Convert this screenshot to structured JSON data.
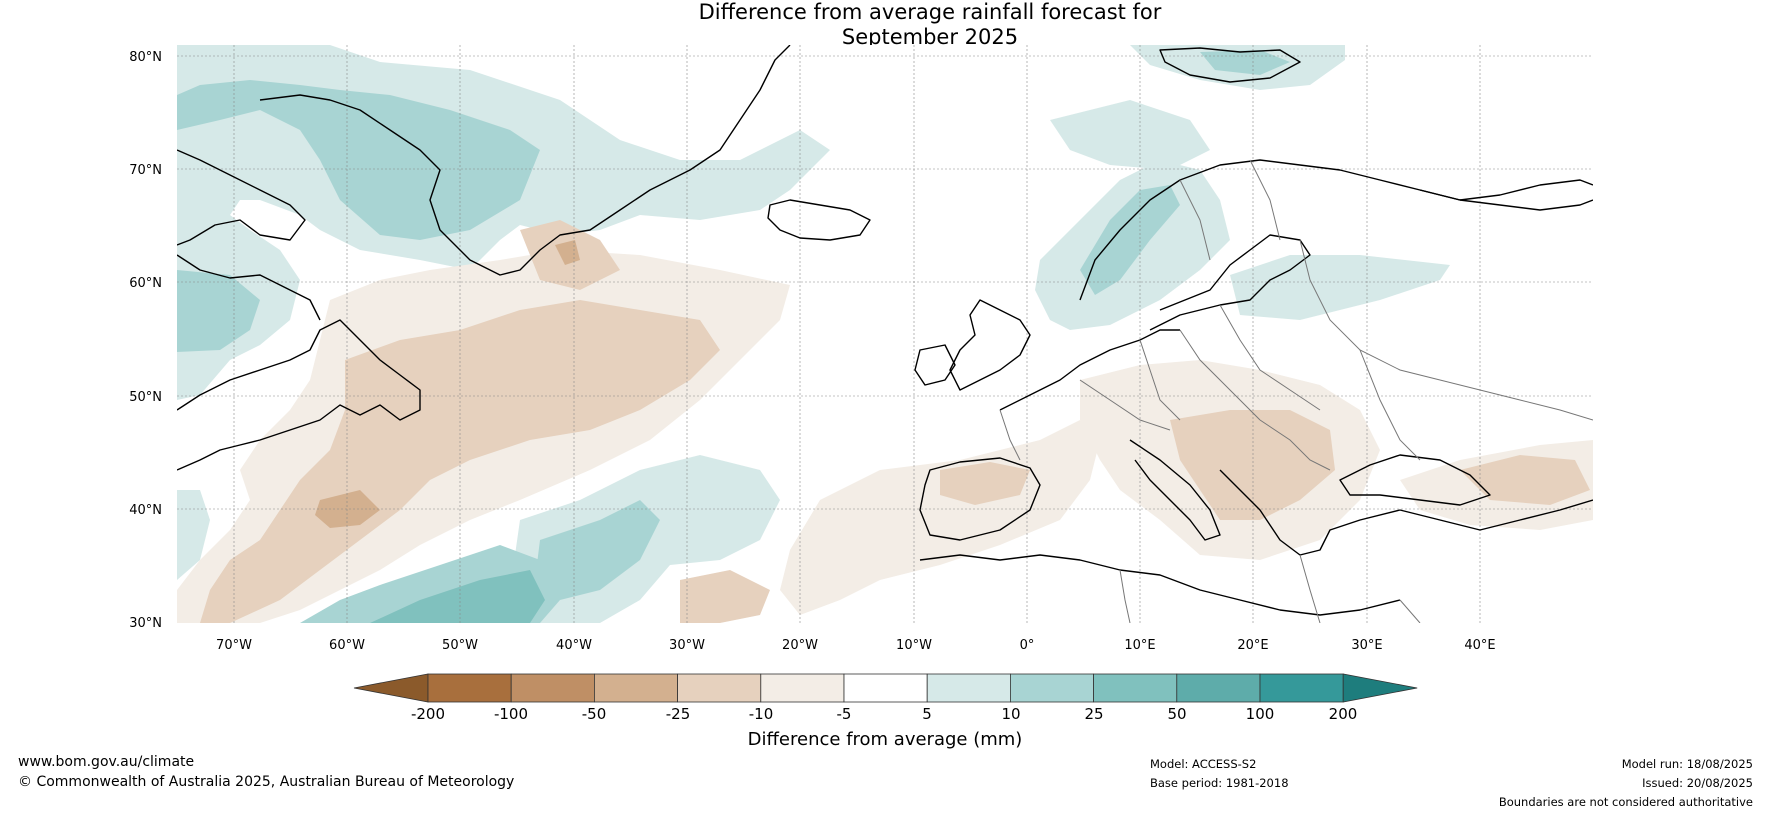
{
  "title_line1": "Difference from average rainfall forecast for",
  "title_line2": "September 2025",
  "map": {
    "lat_labels": [
      "80°N",
      "70°N",
      "60°N",
      "50°N",
      "40°N",
      "30°N"
    ],
    "lon_labels": [
      "70°W",
      "60°W",
      "50°W",
      "40°W",
      "30°W",
      "20°W",
      "10°W",
      "0°",
      "10°E",
      "20°E",
      "30°E",
      "40°E"
    ],
    "extent": {
      "lon_min": -75,
      "lon_max": 50,
      "lat_min": 30,
      "lat_max": 81
    }
  },
  "colorbar": {
    "label": "Difference from average (mm)",
    "ticks": [
      "-200",
      "-100",
      "-50",
      "-25",
      "-10",
      "-5",
      "5",
      "10",
      "25",
      "50",
      "100",
      "200"
    ],
    "colors": [
      "#8b5a2b",
      "#a86f3d",
      "#bf8f65",
      "#d3b08f",
      "#e6d1be",
      "#f3ede6",
      "#ffffff",
      "#d6e9e8",
      "#a8d4d3",
      "#80c1be",
      "#5eacaa",
      "#35999a",
      "#1e7d7d"
    ]
  },
  "footer": {
    "website": "www.bom.gov.au/climate",
    "copyright": "© Commonwealth of Australia 2025, Australian Bureau of Meteorology",
    "model": "Model: ACCESS-S2",
    "base_period": "Base period: 1981-2018",
    "model_run": "Model run: 18/08/2025",
    "issued": "Issued: 20/08/2025",
    "disclaimer": "Boundaries are not considered authoritative"
  }
}
